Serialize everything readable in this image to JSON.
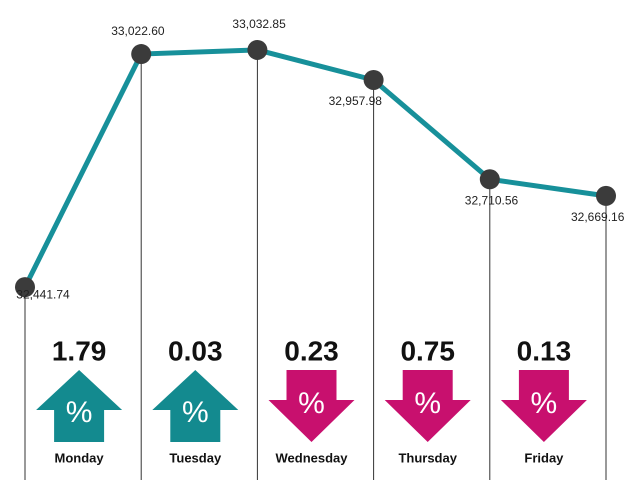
{
  "chart_data": {
    "type": "line",
    "values": [
      32441.74,
      33022.6,
      33032.85,
      32957.98,
      32710.56,
      32669.16
    ],
    "value_labels": [
      "32,441.74",
      "33,022.60",
      "33,032.85",
      "32,957.98",
      "32,710.56",
      "32,669.16"
    ],
    "color": "#17909a",
    "marker_color": "#3b3b3b",
    "ylim": [
      32300,
      33100
    ],
    "changes": {
      "categories": [
        "Monday",
        "Tuesday",
        "Wednesday",
        "Thursday",
        "Friday"
      ],
      "values": [
        1.79,
        0.03,
        0.23,
        0.75,
        0.13
      ],
      "direction": [
        "up",
        "up",
        "down",
        "down",
        "down"
      ],
      "symbol": "%",
      "up_color": "#138a8f",
      "down_color": "#c8106e"
    }
  }
}
